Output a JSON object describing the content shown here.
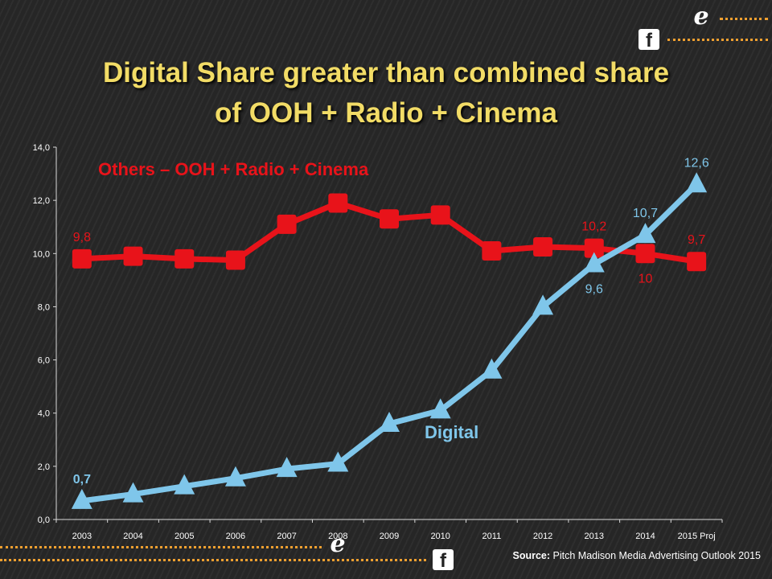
{
  "header": {
    "title_line1": "Digital Share greater than combined share",
    "title_line2": "of OOH + Radio + Cinema"
  },
  "icons": {
    "facebook": "facebook-icon",
    "e_logo": "e-logo-icon"
  },
  "colors": {
    "others": "#e8131a",
    "digital": "#7fc6ea",
    "title": "#f2dc66",
    "dots": "#f0a030"
  },
  "source": {
    "label": "Source:",
    "text": "Pitch Madison Media Advertising Outlook 2015"
  },
  "chart_data": {
    "type": "line",
    "categories": [
      "2003",
      "2004",
      "2005",
      "2006",
      "2007",
      "2008",
      "2009",
      "2010",
      "2011",
      "2012",
      "2013",
      "2014",
      "2015 Proj"
    ],
    "ylim": [
      0,
      14
    ],
    "yticks": [
      "0,0",
      "2,0",
      "4,0",
      "6,0",
      "8,0",
      "10,0",
      "12,0",
      "14,0"
    ],
    "grid": false,
    "series": [
      {
        "name": "Others – OOH + Radio + Cinema",
        "color": "#e8131a",
        "marker": "square",
        "values": [
          9.8,
          9.9,
          9.8,
          9.75,
          11.1,
          11.9,
          11.3,
          11.45,
          10.1,
          10.25,
          10.2,
          10.0,
          9.7
        ],
        "labels": [
          {
            "index": 0,
            "text": "9,8",
            "pos": "above"
          },
          {
            "index": 10,
            "text": "10,2",
            "pos": "above"
          },
          {
            "index": 11,
            "text": "10",
            "pos": "below"
          },
          {
            "index": 12,
            "text": "9,7",
            "pos": "above"
          }
        ]
      },
      {
        "name": "Digital",
        "color": "#7fc6ea",
        "marker": "triangle",
        "values": [
          0.7,
          0.95,
          1.25,
          1.55,
          1.9,
          2.1,
          3.6,
          4.1,
          5.6,
          8.0,
          9.6,
          10.7,
          12.6
        ],
        "labels": [
          {
            "index": 0,
            "text": "0,7",
            "pos": "above"
          },
          {
            "index": 10,
            "text": "9,6",
            "pos": "below"
          },
          {
            "index": 11,
            "text": "10,7",
            "pos": "above"
          },
          {
            "index": 12,
            "text": "12,6",
            "pos": "above"
          }
        ]
      }
    ]
  }
}
